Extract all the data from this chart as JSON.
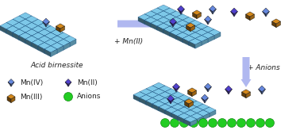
{
  "arrow1_label": "+ Mn(II)",
  "arrow2_label": "+ Anions",
  "acid_birnessite_label": "Acid birnessite",
  "legend": [
    {
      "label": "Mn(IV)",
      "color": "#7ab8e8"
    },
    {
      "label": "Mn(III)",
      "color": "#d4881a"
    },
    {
      "label": "Mn(II)",
      "color": "#5040cc"
    },
    {
      "label": "Anions",
      "color": "#22cc22"
    }
  ],
  "sheet_color": "#7dc8e8",
  "sheet_dark": "#1a5080",
  "sheet_mid": "#4a9cc8",
  "mn4_color": "#6688dd",
  "mn3_color": "#d4881a",
  "mn2_color": "#5040cc",
  "anion_color": "#22cc22",
  "arrow_color": "#b0b8f0",
  "text_color": "#222222",
  "label_fontsize": 6.5,
  "legend_fontsize": 6.5
}
